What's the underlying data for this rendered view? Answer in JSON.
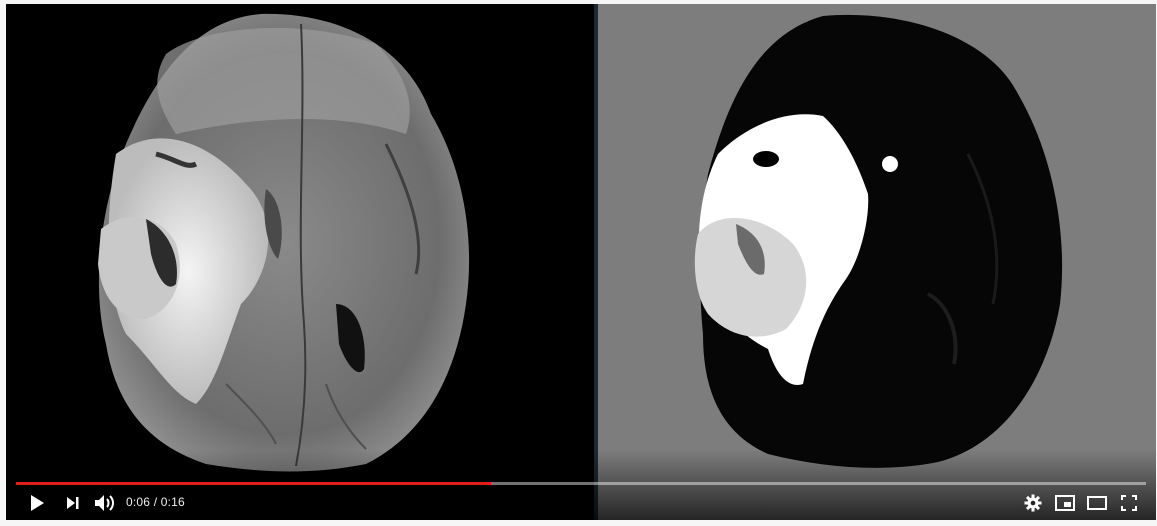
{
  "player": {
    "current_time": "0:06",
    "duration": "0:16",
    "time_separator": " / ",
    "progress_fraction": 0.42,
    "colors": {
      "played": "#e21b1b",
      "background_left": "#000000",
      "background_right": "#7d7d7d"
    }
  },
  "controls": {
    "left": [
      "play-icon",
      "next-icon",
      "volume-icon"
    ],
    "right": [
      "settings-gear-icon",
      "miniplayer-icon",
      "theater-mode-icon",
      "fullscreen-icon"
    ]
  }
}
